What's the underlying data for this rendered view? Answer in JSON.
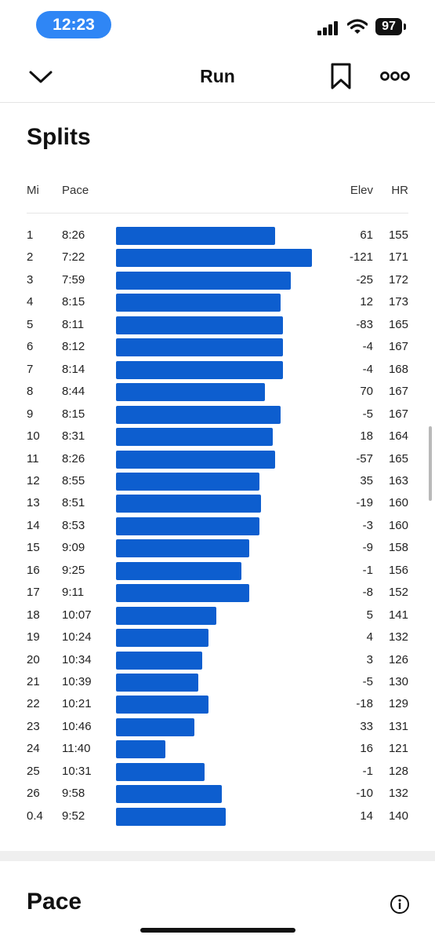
{
  "status": {
    "time": "12:23",
    "battery": "97"
  },
  "nav": {
    "title": "Run"
  },
  "splits": {
    "title": "Splits",
    "headers": {
      "mi": "Mi",
      "pace": "Pace",
      "elev": "Elev",
      "hr": "HR"
    },
    "rows": [
      {
        "mi": "1",
        "pace": "8:26",
        "elev": "61",
        "hr": "155",
        "fill": 0.81
      },
      {
        "mi": "2",
        "pace": "7:22",
        "elev": "-121",
        "hr": "171",
        "fill": 1.0
      },
      {
        "mi": "3",
        "pace": "7:59",
        "elev": "-25",
        "hr": "172",
        "fill": 0.89
      },
      {
        "mi": "4",
        "pace": "8:15",
        "elev": "12",
        "hr": "173",
        "fill": 0.84
      },
      {
        "mi": "5",
        "pace": "8:11",
        "elev": "-83",
        "hr": "165",
        "fill": 0.85
      },
      {
        "mi": "6",
        "pace": "8:12",
        "elev": "-4",
        "hr": "167",
        "fill": 0.85
      },
      {
        "mi": "7",
        "pace": "8:14",
        "elev": "-4",
        "hr": "168",
        "fill": 0.85
      },
      {
        "mi": "8",
        "pace": "8:44",
        "elev": "70",
        "hr": "167",
        "fill": 0.76
      },
      {
        "mi": "9",
        "pace": "8:15",
        "elev": "-5",
        "hr": "167",
        "fill": 0.84
      },
      {
        "mi": "10",
        "pace": "8:31",
        "elev": "18",
        "hr": "164",
        "fill": 0.8
      },
      {
        "mi": "11",
        "pace": "8:26",
        "elev": "-57",
        "hr": "165",
        "fill": 0.81
      },
      {
        "mi": "12",
        "pace": "8:55",
        "elev": "35",
        "hr": "163",
        "fill": 0.73
      },
      {
        "mi": "13",
        "pace": "8:51",
        "elev": "-19",
        "hr": "160",
        "fill": 0.74
      },
      {
        "mi": "14",
        "pace": "8:53",
        "elev": "-3",
        "hr": "160",
        "fill": 0.73
      },
      {
        "mi": "15",
        "pace": "9:09",
        "elev": "-9",
        "hr": "158",
        "fill": 0.68
      },
      {
        "mi": "16",
        "pace": "9:25",
        "elev": "-1",
        "hr": "156",
        "fill": 0.64
      },
      {
        "mi": "17",
        "pace": "9:11",
        "elev": "-8",
        "hr": "152",
        "fill": 0.68
      },
      {
        "mi": "18",
        "pace": "10:07",
        "elev": "5",
        "hr": "141",
        "fill": 0.51
      },
      {
        "mi": "19",
        "pace": "10:24",
        "elev": "4",
        "hr": "132",
        "fill": 0.47
      },
      {
        "mi": "20",
        "pace": "10:34",
        "elev": "3",
        "hr": "126",
        "fill": 0.44
      },
      {
        "mi": "21",
        "pace": "10:39",
        "elev": "-5",
        "hr": "130",
        "fill": 0.42
      },
      {
        "mi": "22",
        "pace": "10:21",
        "elev": "-18",
        "hr": "129",
        "fill": 0.47
      },
      {
        "mi": "23",
        "pace": "10:46",
        "elev": "33",
        "hr": "131",
        "fill": 0.4
      },
      {
        "mi": "24",
        "pace": "11:40",
        "elev": "16",
        "hr": "121",
        "fill": 0.25
      },
      {
        "mi": "25",
        "pace": "10:31",
        "elev": "-1",
        "hr": "128",
        "fill": 0.45
      },
      {
        "mi": "26",
        "pace": "9:58",
        "elev": "-10",
        "hr": "132",
        "fill": 0.54
      },
      {
        "mi": "0.4",
        "pace": "9:52",
        "elev": "14",
        "hr": "140",
        "fill": 0.56
      }
    ]
  },
  "pace_section": {
    "title": "Pace"
  },
  "colors": {
    "bar": "#0d5ecf",
    "time_pill": "#2f86f5"
  },
  "icons": {
    "back": "chevron-down-icon",
    "bookmark": "bookmark-icon",
    "more": "more-icon",
    "info": "info-icon"
  }
}
